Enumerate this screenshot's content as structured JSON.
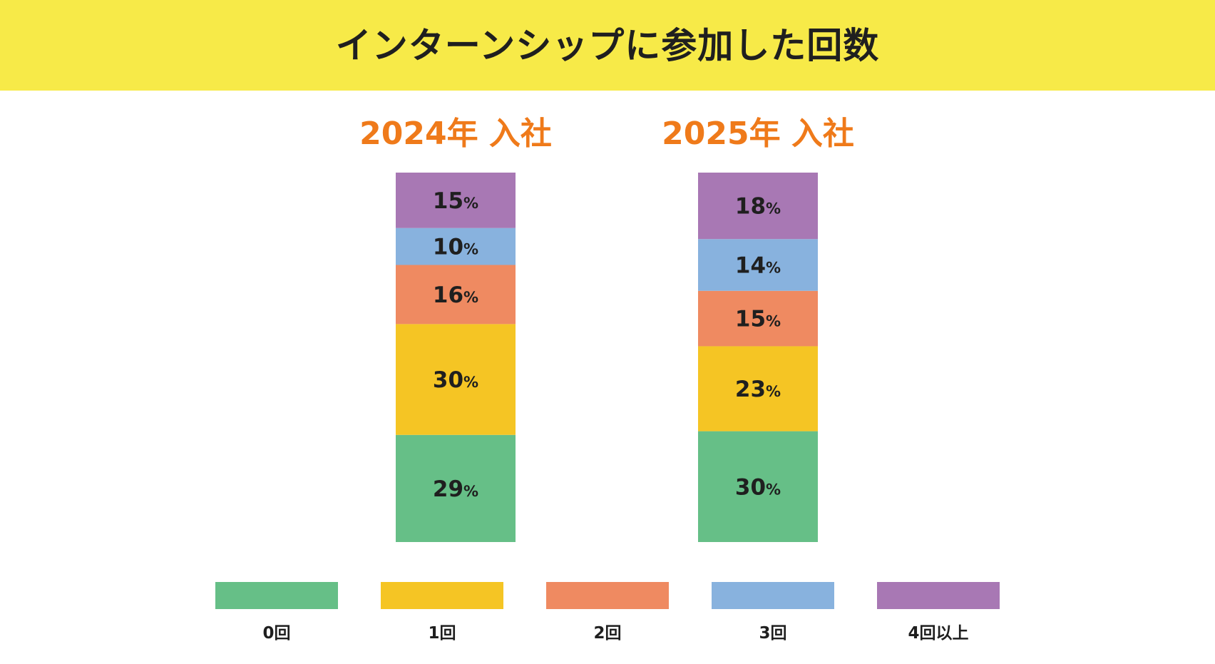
{
  "header": {
    "title": "インターンシップに参加した回数",
    "background": "#f7ea48"
  },
  "chart_data": {
    "type": "bar",
    "stacked": true,
    "title": "インターンシップに参加した回数",
    "categories": [
      "2024年 入社",
      "2025年 入社"
    ],
    "unit": "%",
    "series": [
      {
        "name": "0回",
        "color": "#66bf87",
        "values": [
          29,
          30
        ]
      },
      {
        "name": "1回",
        "color": "#f5c524",
        "values": [
          30,
          23
        ]
      },
      {
        "name": "2回",
        "color": "#ef8a61",
        "values": [
          16,
          15
        ]
      },
      {
        "name": "3回",
        "color": "#88b2de",
        "values": [
          10,
          14
        ]
      },
      {
        "name": "4回以上",
        "color": "#a878b4",
        "values": [
          15,
          18
        ]
      }
    ],
    "legend_position": "bottom",
    "category_label_color": "#ef7a1a"
  }
}
